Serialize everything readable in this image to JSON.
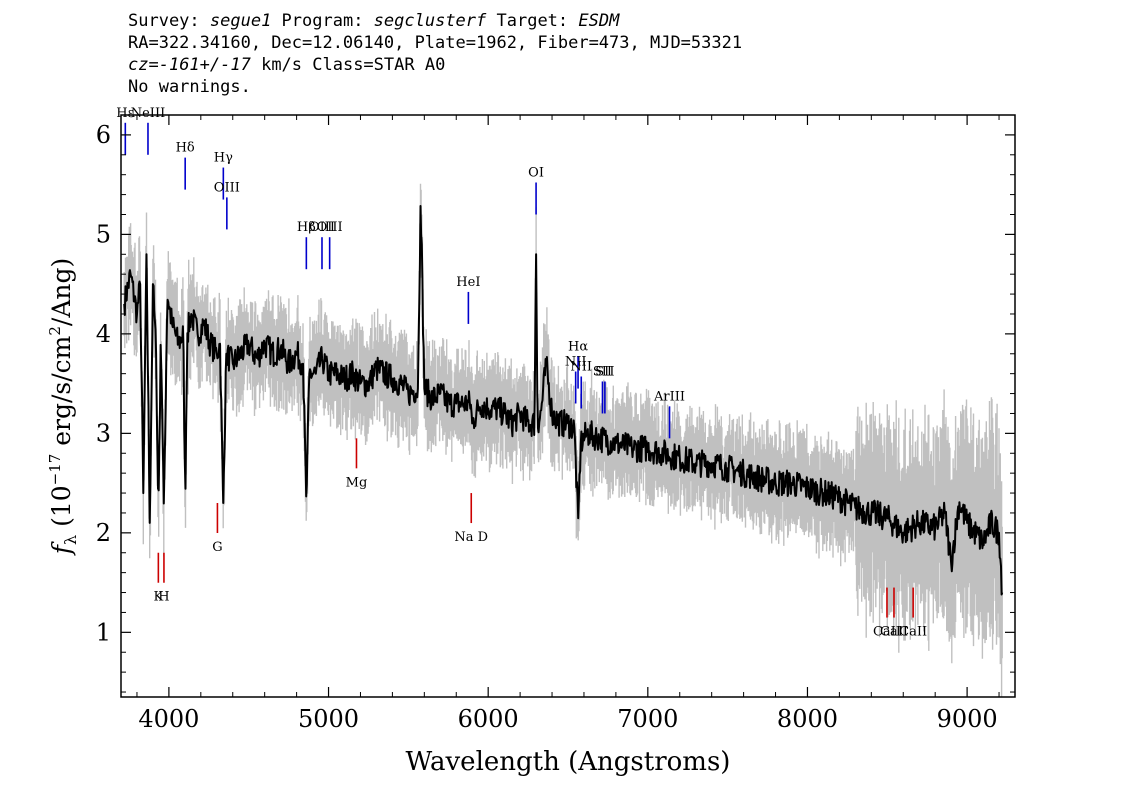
{
  "header": {
    "line1": {
      "survey_label": "Survey: ",
      "survey": "segue1",
      "program_label": " Program: ",
      "program": "segclusterf",
      "target_label": " Target: ",
      "target": "ESDM"
    },
    "line2": "RA=322.34160, Dec=12.06140, Plate=1962, Fiber=473, MJD=53321",
    "line3": {
      "cz_label": "cz=",
      "cz": "-161+/-17",
      "rest": " km/s Class=STAR A0"
    },
    "line4": "No warnings."
  },
  "colors": {
    "spectrum": "#000000",
    "error": "#c0c0c0",
    "emission": "#0000cc",
    "absorption": "#cc0000"
  },
  "chart_data": {
    "type": "line",
    "xlabel": "Wavelength (Angstroms)",
    "ylabel": "f_λ (10^-17 erg/s/cm^2/Ang)",
    "xlim": [
      3700,
      9300
    ],
    "ylim": [
      0.35,
      6.2
    ],
    "x_ticks": [
      4000,
      5000,
      6000,
      7000,
      8000,
      9000
    ],
    "y_ticks": [
      1,
      2,
      3,
      4,
      5,
      6
    ],
    "series": [
      {
        "x": [
          3720,
          3760,
          3800,
          3820,
          3840,
          3860,
          3880,
          3900,
          3920,
          3934,
          3950,
          3969,
          3990,
          4020,
          4060,
          4090,
          4102,
          4115,
          4140,
          4180,
          4220,
          4260,
          4300,
          4320,
          4340,
          4360,
          4400,
          4450,
          4500,
          4550,
          4600,
          4650,
          4700,
          4750,
          4800,
          4840,
          4861,
          4880,
          4920,
          4960,
          5000,
          5050,
          5100,
          5150,
          5200,
          5250,
          5300,
          5350,
          5400,
          5450,
          5500,
          5560,
          5577,
          5600,
          5650,
          5700,
          5750,
          5800,
          5850,
          5890,
          5900,
          5950,
          6000,
          6050,
          6100,
          6150,
          6200,
          6250,
          6290,
          6300,
          6310,
          6330,
          6363,
          6400,
          6450,
          6500,
          6540,
          6563,
          6580,
          6620,
          6700,
          6800,
          6900,
          7000,
          7100,
          7200,
          7300,
          7400,
          7500,
          7600,
          7700,
          7800,
          7900,
          8000,
          8100,
          8200,
          8300,
          8400,
          8500,
          8600,
          8700,
          8800,
          8860,
          8900,
          8950,
          9000,
          9050,
          9100,
          9150,
          9200,
          9220
        ],
        "y": [
          4.3,
          4.6,
          4.2,
          4.5,
          2.4,
          4.8,
          2.1,
          4.5,
          3.8,
          2.2,
          4.0,
          2.2,
          4.4,
          4.1,
          3.9,
          4.0,
          2.3,
          4.0,
          4.2,
          4.0,
          4.1,
          3.9,
          3.8,
          3.9,
          2.3,
          3.8,
          3.7,
          3.8,
          3.9,
          3.75,
          3.9,
          3.8,
          3.85,
          3.7,
          3.8,
          3.7,
          2.3,
          3.6,
          3.6,
          3.75,
          3.6,
          3.6,
          3.55,
          3.6,
          3.5,
          3.5,
          3.65,
          3.6,
          3.55,
          3.5,
          3.4,
          3.45,
          5.4,
          3.45,
          3.35,
          3.4,
          3.3,
          3.3,
          3.3,
          3.3,
          3.1,
          3.3,
          3.25,
          3.25,
          3.2,
          3.1,
          3.2,
          3.1,
          3.1,
          4.8,
          3.1,
          3.2,
          3.7,
          3.2,
          3.1,
          3.1,
          3.05,
          2.1,
          2.9,
          3.0,
          2.95,
          2.9,
          2.85,
          2.85,
          2.8,
          2.75,
          2.7,
          2.7,
          2.65,
          2.6,
          2.55,
          2.5,
          2.5,
          2.45,
          2.4,
          2.35,
          2.25,
          2.2,
          2.15,
          2.0,
          2.1,
          2.05,
          2.2,
          1.7,
          2.3,
          2.1,
          2.0,
          1.9,
          2.1,
          2.0,
          1.4
        ],
        "error_band": 0.3
      }
    ],
    "emission_lines": [
      {
        "label": "Hε",
        "x": 3727,
        "y": 5.8
      },
      {
        "label": "NeIII",
        "x": 3869,
        "y": 5.8
      },
      {
        "label": "Hδ",
        "x": 4102,
        "y": 5.45
      },
      {
        "label": "Hγ",
        "x": 4341,
        "y": 5.35
      },
      {
        "label": "OIII",
        "x": 4363,
        "y": 5.05
      },
      {
        "label": "Hβ",
        "x": 4861,
        "y": 4.65
      },
      {
        "label": "OIII",
        "x": 4959,
        "y": 4.65
      },
      {
        "label": "OIII",
        "x": 5007,
        "y": 4.65
      },
      {
        "label": "HeI",
        "x": 5876,
        "y": 4.1
      },
      {
        "label": "OI",
        "x": 6300,
        "y": 5.2
      },
      {
        "label": "NII",
        "x": 6548,
        "y": 3.3
      },
      {
        "label": "Hα",
        "x": 6563,
        "y": 3.45
      },
      {
        "label": "NII",
        "x": 6583,
        "y": 3.25
      },
      {
        "label": "SII",
        "x": 6716,
        "y": 3.2
      },
      {
        "label": "SII",
        "x": 6731,
        "y": 3.2
      },
      {
        "label": "ArIII",
        "x": 7136,
        "y": 2.95
      }
    ],
    "absorption_lines": [
      {
        "label": "K",
        "x": 3934,
        "y": 1.8
      },
      {
        "label": "H",
        "x": 3969,
        "y": 1.8
      },
      {
        "label": "G",
        "x": 4304,
        "y": 2.3
      },
      {
        "label": "Mg",
        "x": 5175,
        "y": 2.95
      },
      {
        "label": "Na D",
        "x": 5894,
        "y": 2.4
      },
      {
        "label": "CaII",
        "x": 8498,
        "y": 1.45
      },
      {
        "label": "CaII",
        "x": 8542,
        "y": 1.45
      },
      {
        "label": "CaII",
        "x": 8662,
        "y": 1.45
      }
    ]
  }
}
